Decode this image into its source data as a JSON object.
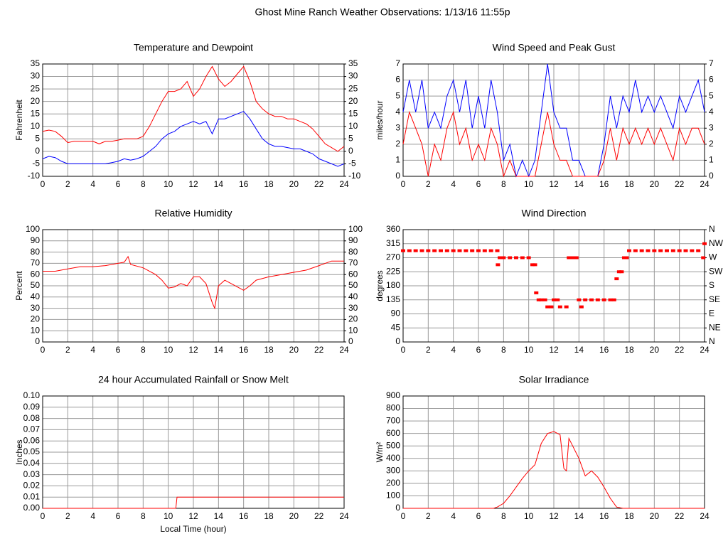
{
  "title": "Ghost Mine Ranch Weather Observations: 1/13/16 11:55p",
  "chart_data": [
    {
      "type": "line",
      "title": "Temperature and Dewpoint",
      "ylabel": "Fahrenheit",
      "xlim": [
        0,
        24
      ],
      "xticks": [
        0,
        2,
        4,
        6,
        8,
        10,
        12,
        14,
        16,
        18,
        20,
        22,
        24
      ],
      "ylim": [
        -10,
        35
      ],
      "yticks": [
        -10,
        -5,
        0,
        5,
        10,
        15,
        20,
        25,
        30,
        35
      ],
      "y2lim": [
        -10,
        35
      ],
      "y2ticks": [
        -10,
        -5,
        0,
        5,
        10,
        15,
        20,
        25,
        30,
        35
      ],
      "grid": true,
      "x": [
        0,
        0.5,
        1,
        1.5,
        2,
        2.5,
        3,
        3.5,
        4,
        4.5,
        5,
        5.5,
        6,
        6.5,
        7,
        7.5,
        8,
        8.5,
        9,
        9.5,
        10,
        10.5,
        11,
        11.5,
        12,
        12.5,
        13,
        13.5,
        14,
        14.5,
        15,
        15.5,
        16,
        16.5,
        17,
        17.5,
        18,
        18.5,
        19,
        19.5,
        20,
        20.5,
        21,
        21.5,
        22,
        22.5,
        23,
        23.5,
        24
      ],
      "series": [
        {
          "color": "#ff0000",
          "values": [
            8,
            8.5,
            8,
            6,
            3.5,
            4,
            4,
            4,
            4,
            3,
            4,
            4,
            4.5,
            5,
            5,
            5,
            6,
            10,
            15,
            20,
            24,
            24,
            25,
            28,
            22,
            25,
            30,
            34,
            29,
            26,
            28,
            31,
            34,
            28,
            20,
            17,
            15,
            14,
            14,
            13,
            13,
            12,
            11,
            9,
            6,
            3,
            1.5,
            0,
            2
          ]
        },
        {
          "color": "#0000ff",
          "values": [
            -3,
            -2,
            -2.5,
            -4,
            -5,
            -5,
            -5,
            -5,
            -5,
            -5,
            -5,
            -4.5,
            -4,
            -3,
            -3.5,
            -3,
            -2,
            0,
            2,
            5,
            7,
            8,
            10,
            11,
            12,
            11,
            12,
            7,
            13,
            13,
            14,
            15,
            16,
            13,
            9,
            5,
            3,
            2,
            2,
            1.5,
            1,
            1,
            0,
            -1,
            -3,
            -4,
            -5,
            -6,
            -5
          ]
        }
      ]
    },
    {
      "type": "line",
      "title": "Wind Speed and Peak Gust",
      "ylabel": "miles/hour",
      "xlim": [
        0,
        24
      ],
      "xticks": [
        0,
        2,
        4,
        6,
        8,
        10,
        12,
        14,
        16,
        18,
        20,
        22,
        24
      ],
      "ylim": [
        0,
        7
      ],
      "yticks": [
        0,
        1,
        2,
        3,
        4,
        5,
        6,
        7
      ],
      "y2lim": [
        0,
        7
      ],
      "y2ticks": [
        0,
        1,
        2,
        3,
        4,
        5,
        6,
        7
      ],
      "grid": true,
      "x": [
        0,
        0.5,
        1,
        1.5,
        2,
        2.5,
        3,
        3.5,
        4,
        4.5,
        5,
        5.5,
        6,
        6.5,
        7,
        7.5,
        8,
        8.5,
        9,
        9.5,
        10,
        10.5,
        11,
        11.5,
        12,
        12.5,
        13,
        13.5,
        14,
        14.5,
        15,
        15.5,
        16,
        16.5,
        17,
        17.5,
        18,
        18.5,
        19,
        19.5,
        20,
        20.5,
        21,
        21.5,
        22,
        22.5,
        23,
        23.5,
        24
      ],
      "series": [
        {
          "color": "#0000ff",
          "values": [
            4,
            6,
            4,
            6,
            3,
            4,
            3,
            5,
            6,
            4,
            6,
            3,
            5,
            3,
            6,
            4,
            1,
            2,
            0,
            1,
            0,
            1,
            4,
            7,
            4,
            3,
            3,
            1,
            1,
            0,
            0,
            0,
            2,
            5,
            3,
            5,
            4,
            6,
            4,
            5,
            4,
            5,
            4,
            3,
            5,
            4,
            5,
            6,
            4
          ]
        },
        {
          "color": "#ff0000",
          "values": [
            2,
            4,
            3,
            2,
            0,
            2,
            1,
            3,
            4,
            2,
            3,
            1,
            2,
            1,
            3,
            2,
            0,
            1,
            0,
            0,
            0,
            0,
            2,
            4,
            2,
            1,
            1,
            0,
            0,
            0,
            0,
            0,
            1,
            3,
            1,
            3,
            2,
            3,
            2,
            3,
            2,
            3,
            2,
            1,
            3,
            2,
            3,
            3,
            2
          ]
        }
      ]
    },
    {
      "type": "line",
      "title": "Relative Humidity",
      "ylabel": "Percent",
      "xlim": [
        0,
        24
      ],
      "xticks": [
        0,
        2,
        4,
        6,
        8,
        10,
        12,
        14,
        16,
        18,
        20,
        22,
        24
      ],
      "ylim": [
        0,
        100
      ],
      "yticks": [
        0,
        10,
        20,
        30,
        40,
        50,
        60,
        70,
        80,
        90,
        100
      ],
      "y2lim": [
        0,
        100
      ],
      "y2ticks": [
        0,
        10,
        20,
        30,
        40,
        50,
        60,
        70,
        80,
        90,
        100
      ],
      "grid": true,
      "x": [
        0,
        1,
        2,
        3,
        4,
        5,
        6,
        6.5,
        6.8,
        7,
        8,
        9,
        9.5,
        10,
        10.5,
        11,
        11.5,
        12,
        12.5,
        13,
        13.5,
        13.7,
        14,
        14.5,
        15,
        15.5,
        16,
        16.5,
        17,
        18,
        19,
        20,
        21,
        22,
        23,
        24
      ],
      "series": [
        {
          "color": "#ff0000",
          "values": [
            63,
            63,
            65,
            67,
            67,
            68,
            70,
            71,
            76,
            69,
            66,
            60,
            55,
            48,
            49,
            52,
            50,
            58,
            58,
            52,
            35,
            30,
            50,
            55,
            52,
            49,
            46,
            50,
            55,
            58,
            60,
            62,
            64,
            68,
            72,
            72
          ]
        }
      ]
    },
    {
      "type": "scatter",
      "title": "Wind Direction",
      "ylabel": "degrees",
      "xlim": [
        0,
        24
      ],
      "xticks": [
        0,
        2,
        4,
        6,
        8,
        10,
        12,
        14,
        16,
        18,
        20,
        22,
        24
      ],
      "ylim": [
        0,
        360
      ],
      "yticks": [
        0,
        45,
        90,
        135,
        180,
        225,
        270,
        315,
        360
      ],
      "y2lim": [
        0,
        360
      ],
      "y2ticks": [
        {
          "value": 0,
          "label": "N"
        },
        {
          "value": 45,
          "label": "NE"
        },
        {
          "value": 90,
          "label": "E"
        },
        {
          "value": 135,
          "label": "SE"
        },
        {
          "value": 180,
          "label": "S"
        },
        {
          "value": 225,
          "label": "SW"
        },
        {
          "value": 270,
          "label": "W"
        },
        {
          "value": 315,
          "label": "NW"
        },
        {
          "value": 360,
          "label": "N"
        }
      ],
      "grid": true,
      "color": "#ff0000",
      "x": [
        0,
        0.5,
        1,
        1.5,
        2,
        2.5,
        3,
        3.5,
        4,
        4.5,
        5,
        5.5,
        6,
        6.5,
        7,
        7.5,
        7.55,
        7.7,
        8,
        8.5,
        9,
        9.5,
        10,
        10.3,
        10.5,
        10.6,
        10.8,
        11,
        11.3,
        11.5,
        11.8,
        12,
        12.3,
        12.5,
        13,
        13.2,
        13.5,
        13.8,
        14,
        14.2,
        14.5,
        15,
        15.5,
        16,
        16.5,
        16.8,
        17,
        17.2,
        17.4,
        17.6,
        17.8,
        18,
        18.5,
        19,
        19.5,
        20,
        20.5,
        21,
        21.5,
        22,
        22.5,
        23,
        23.5,
        23.9,
        24
      ],
      "values": [
        292.5,
        292.5,
        292.5,
        292.5,
        292.5,
        292.5,
        292.5,
        292.5,
        292.5,
        292.5,
        292.5,
        292.5,
        292.5,
        292.5,
        292.5,
        292.5,
        247.5,
        270,
        270,
        270,
        270,
        270,
        270,
        247.5,
        247.5,
        157.5,
        135,
        135,
        135,
        112.5,
        112.5,
        135,
        135,
        112.5,
        112.5,
        270,
        270,
        270,
        135,
        112.5,
        135,
        135,
        135,
        135,
        135,
        135,
        202.5,
        225,
        225,
        270,
        270,
        292.5,
        292.5,
        292.5,
        292.5,
        292.5,
        292.5,
        292.5,
        292.5,
        292.5,
        292.5,
        292.5,
        292.5,
        270,
        315
      ]
    },
    {
      "type": "line",
      "title": "24 hour Accumulated Rainfall or Snow Melt",
      "ylabel": "Inches",
      "xlabel": "Local Time (hour)",
      "xlim": [
        0,
        24
      ],
      "xticks": [
        0,
        2,
        4,
        6,
        8,
        10,
        12,
        14,
        16,
        18,
        20,
        22,
        24
      ],
      "ylim": [
        0,
        0.1
      ],
      "yticks": [
        {
          "value": 0,
          "label": "0.00"
        },
        {
          "value": 0.01,
          "label": "0.01"
        },
        {
          "value": 0.02,
          "label": "0.02"
        },
        {
          "value": 0.03,
          "label": "0.03"
        },
        {
          "value": 0.04,
          "label": "0.04"
        },
        {
          "value": 0.05,
          "label": "0.05"
        },
        {
          "value": 0.06,
          "label": "0.06"
        },
        {
          "value": 0.07,
          "label": "0.07"
        },
        {
          "value": 0.08,
          "label": "0.08"
        },
        {
          "value": 0.09,
          "label": "0.09"
        },
        {
          "value": 0.1,
          "label": "0.10"
        }
      ],
      "grid": true,
      "x": [
        0,
        10.6,
        10.7,
        24
      ],
      "series": [
        {
          "color": "#ff0000",
          "values": [
            0,
            0,
            0.01,
            0.01
          ]
        }
      ]
    },
    {
      "type": "line",
      "title": "Solar Irradiance",
      "ylabel": "W/m²",
      "xlim": [
        0,
        24
      ],
      "xticks": [
        0,
        2,
        4,
        6,
        8,
        10,
        12,
        14,
        16,
        18,
        20,
        22,
        24
      ],
      "ylim": [
        0,
        900
      ],
      "yticks": [
        0,
        100,
        200,
        300,
        400,
        500,
        600,
        700,
        800,
        900
      ],
      "grid": true,
      "x": [
        0,
        7.2,
        7.5,
        8,
        8.5,
        9,
        9.5,
        10,
        10.3,
        10.5,
        11,
        11.5,
        12,
        12.5,
        12.8,
        13,
        13.2,
        13.5,
        14,
        14.5,
        15,
        15.5,
        16,
        16.5,
        17,
        17.5,
        24
      ],
      "series": [
        {
          "color": "#ff0000",
          "values": [
            0,
            0,
            10,
            40,
            100,
            170,
            240,
            300,
            330,
            350,
            520,
            600,
            615,
            590,
            320,
            300,
            560,
            500,
            400,
            260,
            300,
            250,
            170,
            80,
            10,
            0,
            0
          ]
        }
      ]
    }
  ]
}
